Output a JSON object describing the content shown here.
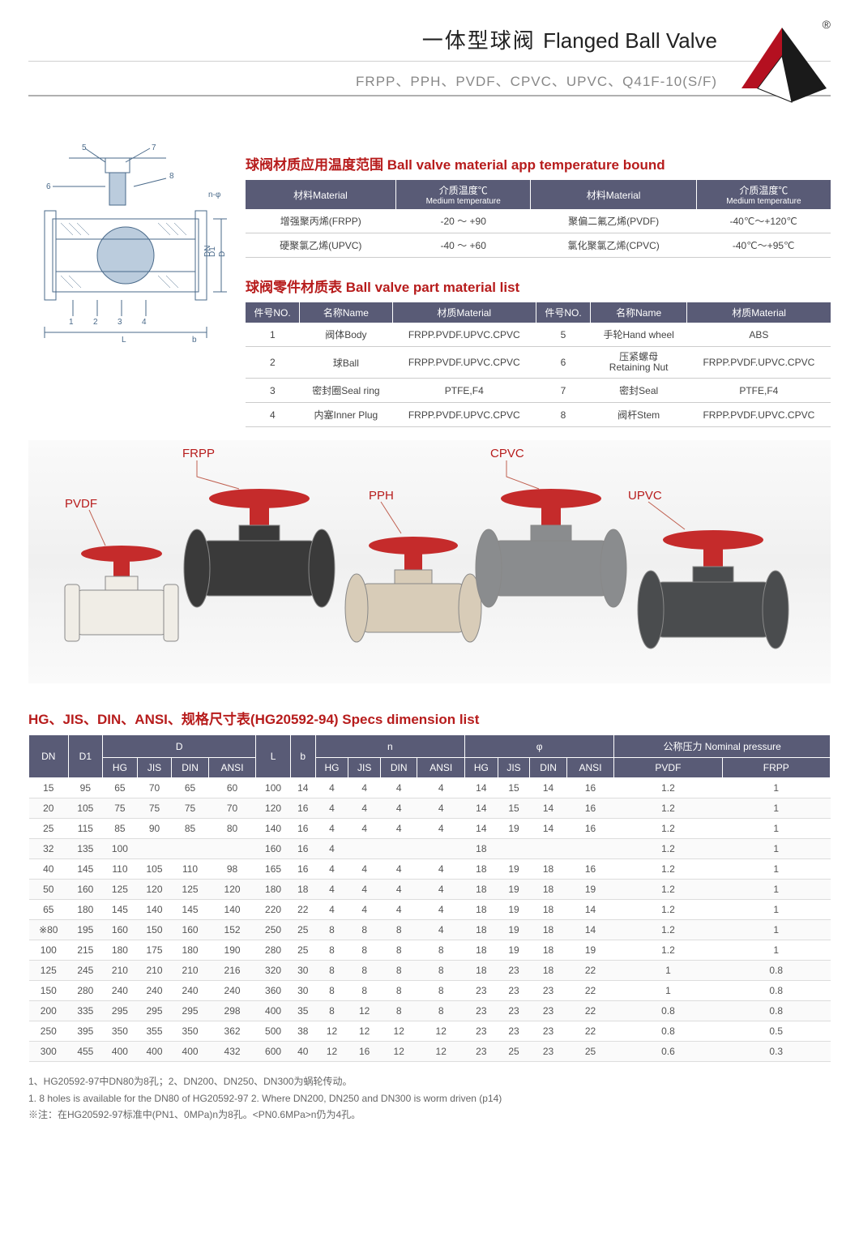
{
  "header": {
    "title_cn": "一体型球阀",
    "title_en": "Flanged Ball Valve",
    "subtitle": "FRPP、PPH、PVDF、CPVC、UPVC、Q41F-10(S/F)",
    "reg_mark": "®"
  },
  "colors": {
    "accent": "#b71c1c",
    "table_header_bg": "#595b76",
    "table_header_fg": "#ffffff",
    "logo_red": "#b41020",
    "logo_dark": "#1a1a1a",
    "valve_red": "#c52b2b",
    "valve_body_frpp": "#3a3a3a",
    "valve_body_pvdf": "#f0ede6",
    "valve_body_pph": "#d8ccb8",
    "valve_body_cpvc": "#8a8c8e",
    "valve_body_upvc": "#4a4c4e"
  },
  "diagram_labels": {
    "top": [
      "5",
      "7"
    ],
    "left": [
      "6"
    ],
    "below_top": [
      "8"
    ],
    "n_phi": "n-φ",
    "bottom_nums": [
      "1",
      "2",
      "3",
      "4"
    ],
    "L": "L",
    "b": "b",
    "DN": "DN",
    "D1": "D1",
    "D": "D"
  },
  "temp_section": {
    "title": "球阀材质应用温度范围 Ball valve material app temperature bound",
    "headers": [
      {
        "main": "材料Material",
        "sub": ""
      },
      {
        "main": "介质温度℃",
        "sub": "Medium temperature"
      },
      {
        "main": "材料Material",
        "sub": ""
      },
      {
        "main": "介质温度℃",
        "sub": "Medium temperature"
      }
    ],
    "rows": [
      [
        "增强聚丙烯(FRPP)",
        "-20  ～ +90",
        "聚偏二氟乙烯(PVDF)",
        "-40℃～+120℃"
      ],
      [
        "硬聚氯乙烯(UPVC)",
        "-40  ～ +60",
        "氯化聚氯乙烯(CPVC)",
        "-40℃～+95℃"
      ]
    ]
  },
  "parts_section": {
    "title": "球阀零件材质表 Ball valve part material list",
    "headers": [
      "件号NO.",
      "名称Name",
      "材质Material",
      "件号NO.",
      "名称Name",
      "材质Material"
    ],
    "rows": [
      [
        "1",
        "阀体Body",
        "FRPP.PVDF.UPVC.CPVC",
        "5",
        "手轮Hand wheel",
        "ABS"
      ],
      [
        "2",
        "球Ball",
        "FRPP.PVDF.UPVC.CPVC",
        "6",
        "压紧螺母\nRetaining Nut",
        "FRPP.PVDF.UPVC.CPVC"
      ],
      [
        "3",
        "密封圈Seal ring",
        "PTFE,F4",
        "7",
        "密封Seal",
        "PTFE,F4"
      ],
      [
        "4",
        "内塞Inner Plug",
        "FRPP.PVDF.UPVC.CPVC",
        "8",
        "阀杆Stem",
        "FRPP.PVDF.UPVC.CPVC"
      ]
    ]
  },
  "product_labels": {
    "frpp": "FRPP",
    "pvdf": "PVDF",
    "pph": "PPH",
    "cpvc": "CPVC",
    "upvc": "UPVC"
  },
  "specs_section": {
    "title": "HG、JIS、DIN、ANSI、规格尺寸表(HG20592-94) Specs dimension list",
    "header_row1": [
      "DN",
      "D1",
      "D",
      "L",
      "b",
      "n",
      "φ",
      "公称压力 Nominal pressure"
    ],
    "header_sub_D": [
      "HG",
      "JIS",
      "DIN",
      "ANSI"
    ],
    "header_sub_n": [
      "HG",
      "JIS",
      "DIN",
      "ANSI"
    ],
    "header_sub_phi": [
      "HG",
      "JIS",
      "DIN",
      "ANSI"
    ],
    "header_sub_press": [
      "PVDF",
      "FRPP"
    ],
    "rows": [
      [
        "15",
        "95",
        "65",
        "70",
        "65",
        "60",
        "100",
        "14",
        "4",
        "4",
        "4",
        "4",
        "14",
        "15",
        "14",
        "16",
        "1.2",
        "1"
      ],
      [
        "20",
        "105",
        "75",
        "75",
        "75",
        "70",
        "120",
        "16",
        "4",
        "4",
        "4",
        "4",
        "14",
        "15",
        "14",
        "16",
        "1.2",
        "1"
      ],
      [
        "25",
        "115",
        "85",
        "90",
        "85",
        "80",
        "140",
        "16",
        "4",
        "4",
        "4",
        "4",
        "14",
        "19",
        "14",
        "16",
        "1.2",
        "1"
      ],
      [
        "32",
        "135",
        "100",
        "",
        "",
        "",
        "160",
        "16",
        "4",
        "",
        "",
        "",
        "18",
        "",
        "",
        "",
        "1.2",
        "1"
      ],
      [
        "40",
        "145",
        "110",
        "105",
        "110",
        "98",
        "165",
        "16",
        "4",
        "4",
        "4",
        "4",
        "18",
        "19",
        "18",
        "16",
        "1.2",
        "1"
      ],
      [
        "50",
        "160",
        "125",
        "120",
        "125",
        "120",
        "180",
        "18",
        "4",
        "4",
        "4",
        "4",
        "18",
        "19",
        "18",
        "19",
        "1.2",
        "1"
      ],
      [
        "65",
        "180",
        "145",
        "140",
        "145",
        "140",
        "220",
        "22",
        "4",
        "4",
        "4",
        "4",
        "18",
        "19",
        "18",
        "14",
        "1.2",
        "1"
      ],
      [
        "※80",
        "195",
        "160",
        "150",
        "160",
        "152",
        "250",
        "25",
        "8",
        "8",
        "8",
        "4",
        "18",
        "19",
        "18",
        "14",
        "1.2",
        "1"
      ],
      [
        "100",
        "215",
        "180",
        "175",
        "180",
        "190",
        "280",
        "25",
        "8",
        "8",
        "8",
        "8",
        "18",
        "19",
        "18",
        "19",
        "1.2",
        "1"
      ],
      [
        "125",
        "245",
        "210",
        "210",
        "210",
        "216",
        "320",
        "30",
        "8",
        "8",
        "8",
        "8",
        "18",
        "23",
        "18",
        "22",
        "1",
        "0.8"
      ],
      [
        "150",
        "280",
        "240",
        "240",
        "240",
        "240",
        "360",
        "30",
        "8",
        "8",
        "8",
        "8",
        "23",
        "23",
        "23",
        "22",
        "1",
        "0.8"
      ],
      [
        "200",
        "335",
        "295",
        "295",
        "295",
        "298",
        "400",
        "35",
        "8",
        "12",
        "8",
        "8",
        "23",
        "23",
        "23",
        "22",
        "0.8",
        "0.8"
      ],
      [
        "250",
        "395",
        "350",
        "355",
        "350",
        "362",
        "500",
        "38",
        "12",
        "12",
        "12",
        "12",
        "23",
        "23",
        "23",
        "22",
        "0.8",
        "0.5"
      ],
      [
        "300",
        "455",
        "400",
        "400",
        "400",
        "432",
        "600",
        "40",
        "12",
        "16",
        "12",
        "12",
        "23",
        "25",
        "23",
        "25",
        "0.6",
        "0.3"
      ]
    ]
  },
  "footnotes": [
    "1、HG20592-97中DN80为8孔；2、DN200、DN250、DN300为蜗轮传动。",
    "1. 8 holes is available for the DN80 of HG20592-97  2. Where DN200, DN250 and DN300 is worm driven (p14)",
    "※注：在HG20592-97标准中(PN1、0MPa)n为8孔。<PN0.6MPa>n仍为4孔。"
  ]
}
